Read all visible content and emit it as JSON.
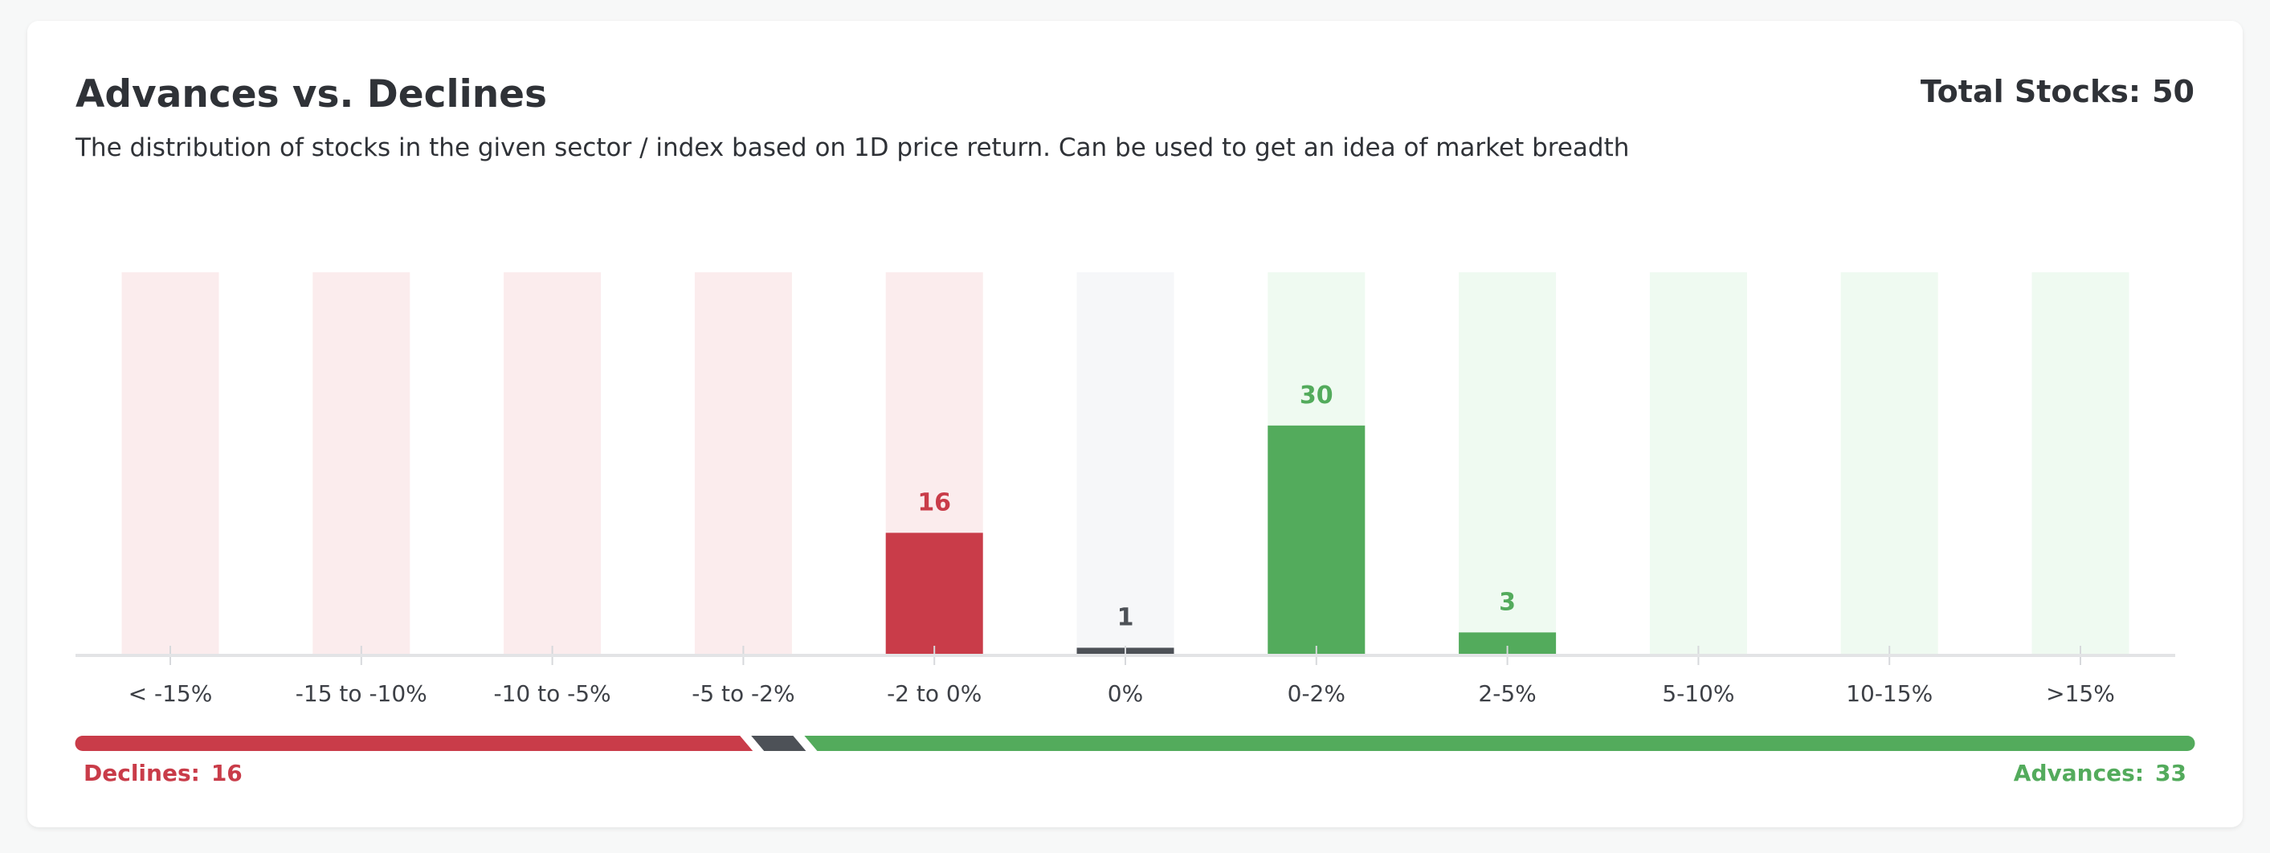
{
  "header": {
    "title": "Advances vs. Declines",
    "subtitle": "The distribution of stocks in the given sector / index based on 1D price return. Can be used to get an idea of market breadth",
    "total_label": "Total Stocks:",
    "total_value": "50"
  },
  "breadth": {
    "declines_label": "Declines:",
    "declines_value": "16",
    "advances_label": "Advances:",
    "advances_value": "33",
    "unchanged_value": "1"
  },
  "colors": {
    "decline": "#c93c49",
    "decline_bg": "#fbeced",
    "neutral": "#4d5157",
    "neutral_bg": "#f6f7f9",
    "advance": "#53ab5c",
    "advance_bg": "#effaf1",
    "axis": "#e3e4e6",
    "tick_text": "#3d4046"
  },
  "chart_data": {
    "type": "bar",
    "categories": [
      "< -15%",
      "-15 to -10%",
      "-10 to -5%",
      "-5 to -2%",
      "-2 to 0%",
      "0%",
      "0-2%",
      "2-5%",
      "5-10%",
      "10-15%",
      ">15%"
    ],
    "values": [
      0,
      0,
      0,
      0,
      16,
      1,
      30,
      3,
      0,
      0,
      0
    ],
    "groups": [
      "decline",
      "decline",
      "decline",
      "decline",
      "decline",
      "neutral",
      "advance",
      "advance",
      "advance",
      "advance",
      "advance"
    ],
    "ylim": [
      0,
      50
    ],
    "grid": false,
    "legend": "none"
  }
}
